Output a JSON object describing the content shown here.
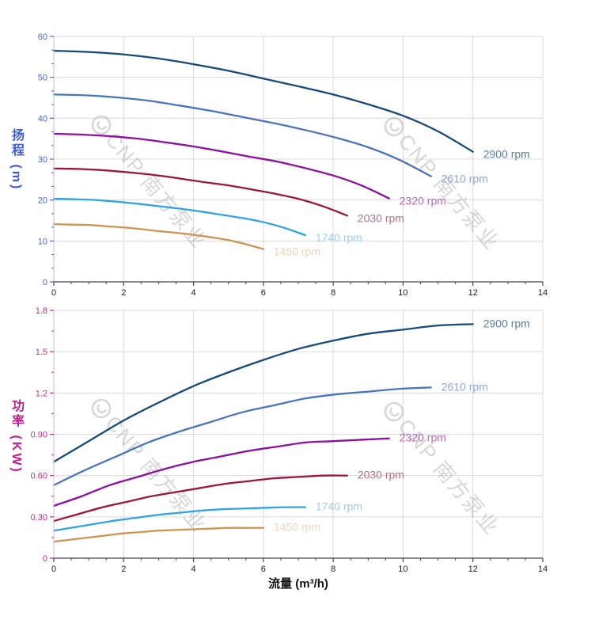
{
  "figure": {
    "watermark": {
      "logo": "cnp-circle-logo",
      "text": "CNP 南方泵业"
    }
  },
  "chart_data": [
    {
      "type": "line",
      "title": "",
      "xlabel": "流量 (m³/h)",
      "ylabel": "扬程 (m)",
      "xlim": [
        0,
        14
      ],
      "ylim": [
        0,
        60
      ],
      "grid": true,
      "legend_position": "curve-end-labels",
      "x_major_ticks": [
        0,
        2,
        4,
        6,
        8,
        10,
        12,
        14
      ],
      "x_tick_labels": [
        "0",
        "2",
        "4",
        "6",
        "8",
        "10",
        "12",
        "14"
      ],
      "x_minor_step": 0.5,
      "y_major_ticks": [
        0,
        10,
        20,
        30,
        40,
        50,
        60
      ],
      "y_tick_labels": [
        "0",
        "10",
        "20",
        "30",
        "40",
        "50",
        "60"
      ],
      "y_minor_divisions": 3,
      "axis_color": "#4667D6",
      "spine_color": "#C3CBF0",
      "series": [
        {
          "name": "2900 rpm",
          "color": "#174A7C",
          "label_color": "#5B7E9F",
          "points": [
            [
              0,
              56.5
            ],
            [
              1,
              56.2
            ],
            [
              2,
              55.6
            ],
            [
              3,
              54.6
            ],
            [
              4,
              53.2
            ],
            [
              5,
              51.6
            ],
            [
              6,
              49.7
            ],
            [
              7,
              47.8
            ],
            [
              8,
              45.8
            ],
            [
              9,
              43.4
            ],
            [
              10,
              40.6
            ],
            [
              11,
              36.8
            ],
            [
              12,
              31.8
            ]
          ]
        },
        {
          "name": "2610 rpm",
          "color": "#4A74C0",
          "label_color": "#8EA6D8",
          "points": [
            [
              0,
              45.8
            ],
            [
              0.9,
              45.6
            ],
            [
              1.8,
              45.1
            ],
            [
              2.7,
              44.3
            ],
            [
              3.6,
              43.1
            ],
            [
              4.5,
              41.8
            ],
            [
              5.4,
              40.3
            ],
            [
              6.3,
              38.8
            ],
            [
              7.2,
              37.1
            ],
            [
              8.1,
              35.2
            ],
            [
              9,
              32.9
            ],
            [
              9.9,
              29.8
            ],
            [
              10.8,
              25.8
            ]
          ]
        },
        {
          "name": "2320 rpm",
          "color": "#8E10A0",
          "label_color": "#B468BE",
          "points": [
            [
              0,
              36.2
            ],
            [
              0.8,
              36.0
            ],
            [
              1.6,
              35.6
            ],
            [
              2.4,
              35.0
            ],
            [
              3.2,
              34.1
            ],
            [
              4,
              33.1
            ],
            [
              4.8,
              31.9
            ],
            [
              5.6,
              30.6
            ],
            [
              6.4,
              29.4
            ],
            [
              7.2,
              27.8
            ],
            [
              8,
              26.0
            ],
            [
              8.8,
              23.6
            ],
            [
              9.6,
              20.4
            ]
          ]
        },
        {
          "name": "2030 rpm",
          "color": "#9E1538",
          "label_color": "#BA6F88",
          "points": [
            [
              0,
              27.7
            ],
            [
              0.7,
              27.6
            ],
            [
              1.4,
              27.3
            ],
            [
              2.1,
              26.8
            ],
            [
              2.8,
              26.2
            ],
            [
              3.5,
              25.4
            ],
            [
              4.2,
              24.5
            ],
            [
              4.9,
              23.7
            ],
            [
              5.6,
              22.7
            ],
            [
              6.3,
              21.6
            ],
            [
              7,
              20.3
            ],
            [
              7.7,
              18.5
            ],
            [
              8.4,
              16.2
            ]
          ]
        },
        {
          "name": "1740 rpm",
          "color": "#2FA3E3",
          "label_color": "#9CCDF2",
          "points": [
            [
              0,
              20.3
            ],
            [
              0.6,
              20.2
            ],
            [
              1.2,
              20.0
            ],
            [
              1.8,
              19.6
            ],
            [
              2.4,
              19.1
            ],
            [
              3,
              18.5
            ],
            [
              3.6,
              17.9
            ],
            [
              4.2,
              17.2
            ],
            [
              4.8,
              16.4
            ],
            [
              5.4,
              15.6
            ],
            [
              6,
              14.6
            ],
            [
              6.6,
              13.2
            ],
            [
              7.2,
              11.4
            ]
          ]
        },
        {
          "name": "1450 rpm",
          "color": "#CE9551",
          "label_color": "#EFD6AC",
          "points": [
            [
              0,
              14.1
            ],
            [
              0.5,
              14.0
            ],
            [
              1,
              13.9
            ],
            [
              1.5,
              13.6
            ],
            [
              2,
              13.3
            ],
            [
              2.5,
              12.9
            ],
            [
              3,
              12.4
            ],
            [
              3.5,
              12.0
            ],
            [
              4,
              11.5
            ],
            [
              4.5,
              10.9
            ],
            [
              5,
              10.2
            ],
            [
              5.5,
              9.2
            ],
            [
              6,
              8.0
            ]
          ]
        }
      ]
    },
    {
      "type": "line",
      "title": "",
      "xlabel": "流量 (m³/h)",
      "ylabel": "功率 (KW)",
      "xlim": [
        0,
        14
      ],
      "ylim": [
        0,
        1.8
      ],
      "grid": true,
      "legend_position": "curve-end-labels",
      "x_major_ticks": [
        0,
        2,
        4,
        6,
        8,
        10,
        12,
        14
      ],
      "x_tick_labels": [
        "0",
        "2",
        "4",
        "6",
        "8",
        "10",
        "12",
        "14"
      ],
      "x_minor_step": 0.5,
      "y_major_ticks": [
        0,
        0.3,
        0.6,
        0.9,
        1.2,
        1.5,
        1.8
      ],
      "y_tick_labels": [
        "0",
        "0.30",
        "0.60",
        "0.90",
        "1.2",
        "1.5",
        "1.8"
      ],
      "y_minor_divisions": 2,
      "axis_color": "#C02C8C",
      "spine_color": "#ECC2DD",
      "series": [
        {
          "name": "2900 rpm",
          "color": "#174A7C",
          "label_color": "#5B7E9F",
          "points": [
            [
              0,
              0.7
            ],
            [
              1,
              0.85
            ],
            [
              2,
              1.0
            ],
            [
              3,
              1.13
            ],
            [
              4,
              1.25
            ],
            [
              5,
              1.35
            ],
            [
              6,
              1.44
            ],
            [
              7,
              1.52
            ],
            [
              8,
              1.58
            ],
            [
              9,
              1.63
            ],
            [
              10,
              1.66
            ],
            [
              11,
              1.69
            ],
            [
              12,
              1.7
            ]
          ]
        },
        {
          "name": "2610 rpm",
          "color": "#4A74C0",
          "label_color": "#8EA6D8",
          "points": [
            [
              0,
              0.53
            ],
            [
              0.9,
              0.64
            ],
            [
              1.8,
              0.74
            ],
            [
              2.7,
              0.84
            ],
            [
              3.6,
              0.92
            ],
            [
              4.5,
              0.99
            ],
            [
              5.4,
              1.06
            ],
            [
              6.3,
              1.11
            ],
            [
              7.2,
              1.16
            ],
            [
              8.1,
              1.19
            ],
            [
              9,
              1.21
            ],
            [
              9.9,
              1.23
            ],
            [
              10.8,
              1.24
            ]
          ]
        },
        {
          "name": "2320 rpm",
          "color": "#8E10A0",
          "label_color": "#B468BE",
          "points": [
            [
              0,
              0.38
            ],
            [
              0.8,
              0.45
            ],
            [
              1.6,
              0.53
            ],
            [
              2.4,
              0.59
            ],
            [
              3.2,
              0.65
            ],
            [
              4,
              0.7
            ],
            [
              4.8,
              0.74
            ],
            [
              5.6,
              0.78
            ],
            [
              6.4,
              0.81
            ],
            [
              7.2,
              0.84
            ],
            [
              8,
              0.85
            ],
            [
              8.8,
              0.86
            ],
            [
              9.6,
              0.87
            ]
          ]
        },
        {
          "name": "2030 rpm",
          "color": "#9E1538",
          "label_color": "#BA6F88",
          "points": [
            [
              0,
              0.27
            ],
            [
              0.7,
              0.32
            ],
            [
              1.4,
              0.37
            ],
            [
              2.1,
              0.41
            ],
            [
              2.8,
              0.45
            ],
            [
              3.5,
              0.48
            ],
            [
              4.2,
              0.51
            ],
            [
              4.9,
              0.54
            ],
            [
              5.6,
              0.56
            ],
            [
              6.3,
              0.58
            ],
            [
              7,
              0.59
            ],
            [
              7.7,
              0.6
            ],
            [
              8.4,
              0.6
            ]
          ]
        },
        {
          "name": "1740 rpm",
          "color": "#2FA3E3",
          "label_color": "#9CCDF2",
          "points": [
            [
              0,
              0.2
            ],
            [
              0.6,
              0.225
            ],
            [
              1.2,
              0.25
            ],
            [
              1.8,
              0.275
            ],
            [
              2.4,
              0.295
            ],
            [
              3,
              0.315
            ],
            [
              3.6,
              0.33
            ],
            [
              4.2,
              0.345
            ],
            [
              4.8,
              0.355
            ],
            [
              5.4,
              0.36
            ],
            [
              6,
              0.365
            ],
            [
              6.6,
              0.37
            ],
            [
              7.2,
              0.37
            ]
          ]
        },
        {
          "name": "1450 rpm",
          "color": "#CE9551",
          "label_color": "#EFD6AC",
          "points": [
            [
              0,
              0.12
            ],
            [
              0.5,
              0.135
            ],
            [
              1,
              0.15
            ],
            [
              1.5,
              0.165
            ],
            [
              2,
              0.18
            ],
            [
              2.5,
              0.19
            ],
            [
              3,
              0.2
            ],
            [
              3.5,
              0.205
            ],
            [
              4,
              0.21
            ],
            [
              4.5,
              0.215
            ],
            [
              5,
              0.22
            ],
            [
              5.5,
              0.22
            ],
            [
              6,
              0.22
            ]
          ]
        }
      ]
    }
  ]
}
